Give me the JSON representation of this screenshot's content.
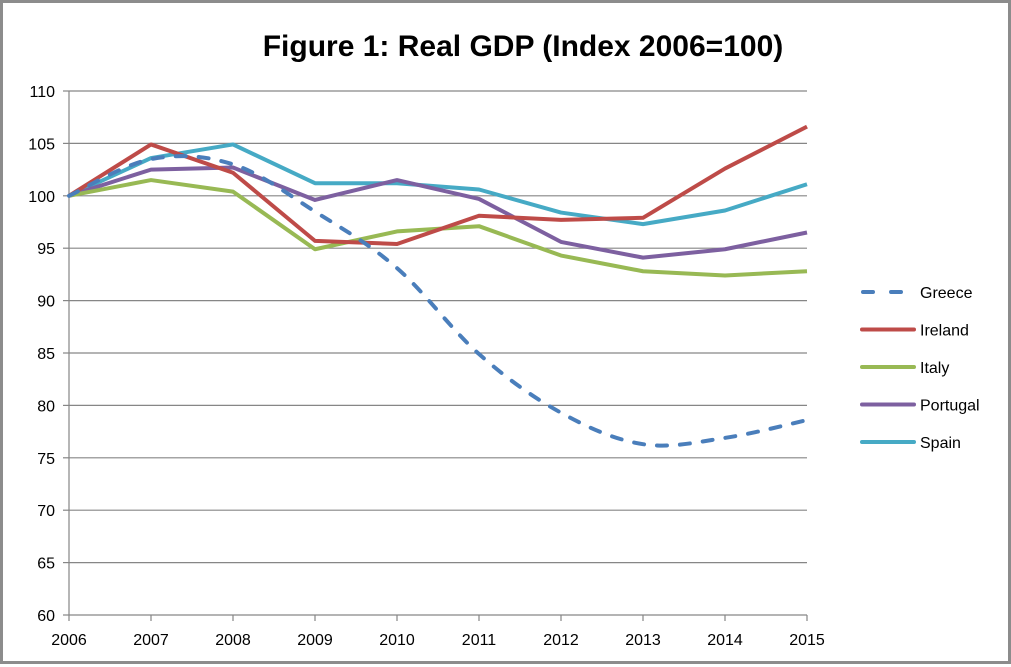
{
  "chart_data": {
    "type": "line",
    "title": "Figure 1: Real GDP (Index 2006=100)",
    "xlabel": "",
    "ylabel": "",
    "x": [
      "2006",
      "2007",
      "2008",
      "2009",
      "2010",
      "2011",
      "2012",
      "2013",
      "2014",
      "2015"
    ],
    "ylim": [
      60,
      110
    ],
    "yticks": [
      "60",
      "65",
      "70",
      "75",
      "80",
      "85",
      "90",
      "95",
      "100",
      "105",
      "110"
    ],
    "grid": true,
    "legend_position": "right",
    "series": [
      {
        "name": "Greece",
        "color": "#4a7ebb",
        "style": "dashed",
        "smooth": true,
        "values": [
          100,
          103.5,
          103.0,
          98.5,
          93.1,
          84.9,
          79.3,
          76.3,
          76.9,
          78.6
        ]
      },
      {
        "name": "Ireland",
        "color": "#be4b48",
        "style": "solid",
        "smooth": false,
        "values": [
          100,
          104.9,
          102.2,
          95.7,
          95.4,
          98.1,
          97.7,
          97.9,
          102.6,
          106.6
        ]
      },
      {
        "name": "Italy",
        "color": "#98b954",
        "style": "solid",
        "smooth": false,
        "values": [
          100,
          101.5,
          100.4,
          94.9,
          96.6,
          97.1,
          94.3,
          92.8,
          92.4,
          92.8
        ]
      },
      {
        "name": "Portugal",
        "color": "#7d60a0",
        "style": "solid",
        "smooth": false,
        "values": [
          100,
          102.5,
          102.7,
          99.6,
          101.5,
          99.7,
          95.6,
          94.1,
          94.9,
          96.5
        ]
      },
      {
        "name": "Spain",
        "color": "#46aac5",
        "style": "solid",
        "smooth": false,
        "values": [
          100,
          103.6,
          104.9,
          101.2,
          101.2,
          100.6,
          98.4,
          97.3,
          98.6,
          101.1
        ]
      }
    ]
  }
}
